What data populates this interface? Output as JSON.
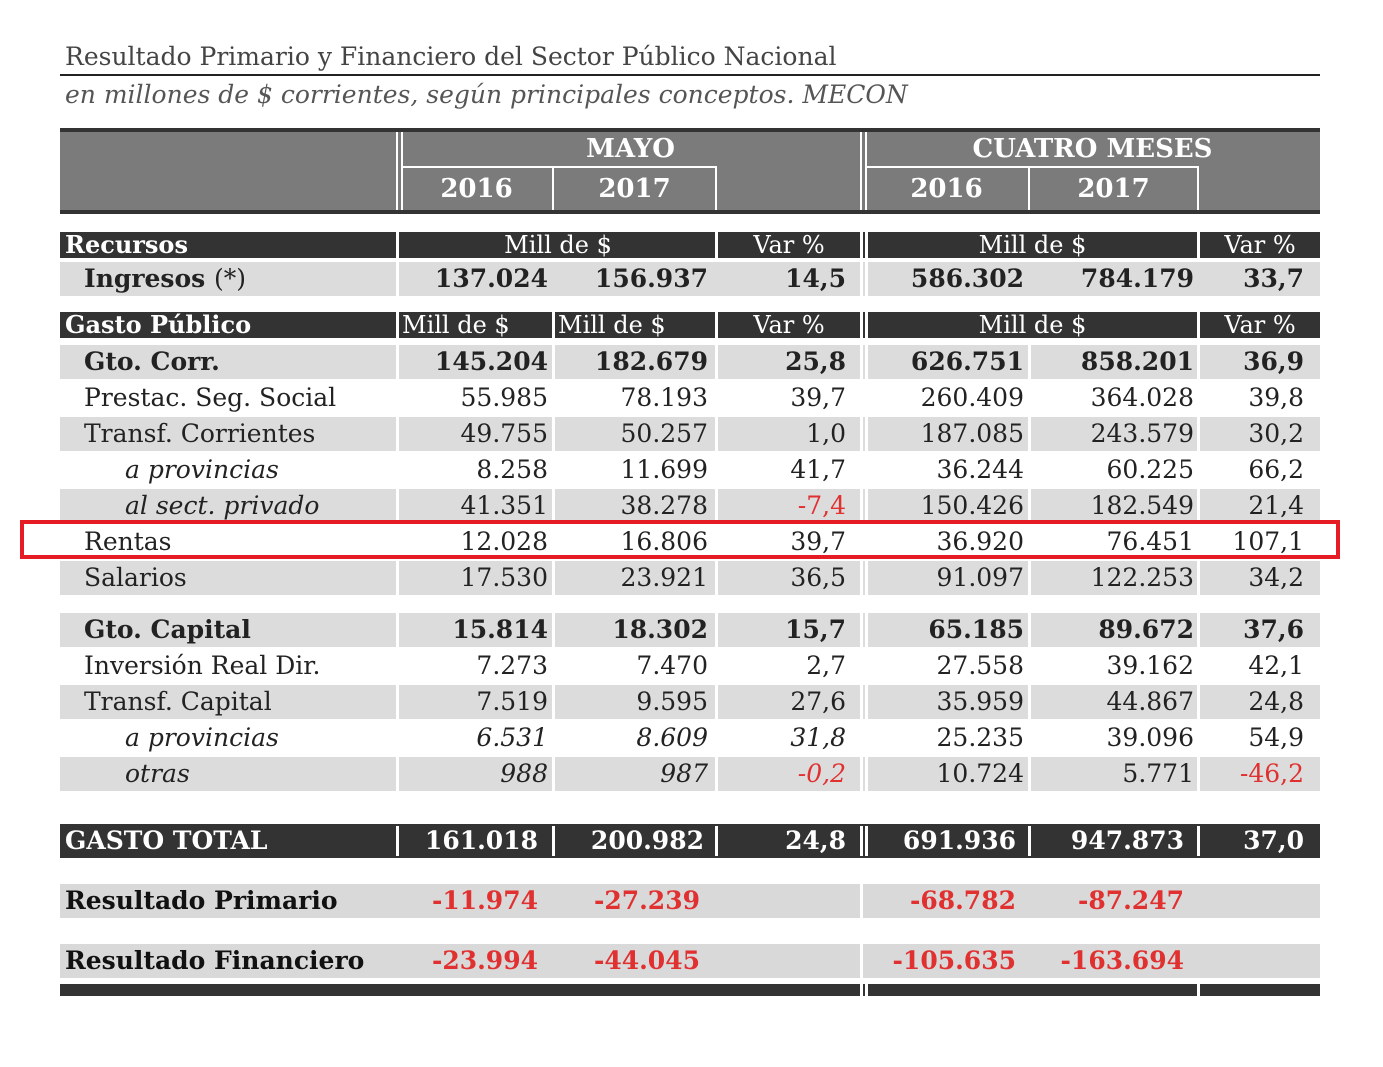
{
  "title": "Resultado Primario y Financiero del Sector Público Nacional",
  "subtitle": "en millones de $ corrientes, según principales conceptos. MECON",
  "header": {
    "mayo": "MAYO",
    "cuatro_meses": "CUATRO MESES",
    "y2016": "2016",
    "y2017": "2017"
  },
  "recursos": {
    "label": "Recursos",
    "mill_label": "Mill de $",
    "var_label": "Var %",
    "row": {
      "label": "Ingresos",
      "note": "(*)",
      "values": [
        "137.024",
        "156.937",
        "14,5",
        "586.302",
        "784.179",
        "33,7"
      ]
    }
  },
  "gasto": {
    "label": "Gasto Público",
    "mill_label": "Mill de $",
    "var_label": "Var %",
    "rows": [
      {
        "label": "Gto. Corr.",
        "values": [
          "145.204",
          "182.679",
          "25,8",
          "626.751",
          "858.201",
          "36,9"
        ]
      },
      {
        "label": "Prestac. Seg. Social",
        "values": [
          "55.985",
          "78.193",
          "39,7",
          "260.409",
          "364.028",
          "39,8"
        ]
      },
      {
        "label": "Transf. Corrientes",
        "values": [
          "49.755",
          "50.257",
          "1,0",
          "187.085",
          "243.579",
          "30,2"
        ]
      },
      {
        "label": "a provincias",
        "values": [
          "8.258",
          "11.699",
          "41,7",
          "36.244",
          "60.225",
          "66,2"
        ]
      },
      {
        "label": "al sect. privado",
        "values": [
          "41.351",
          "38.278",
          "-7,4",
          "150.426",
          "182.549",
          "21,4"
        ]
      },
      {
        "label": "Rentas",
        "values": [
          "12.028",
          "16.806",
          "39,7",
          "36.920",
          "76.451",
          "107,1"
        ]
      },
      {
        "label": "Salarios",
        "values": [
          "17.530",
          "23.921",
          "36,5",
          "91.097",
          "122.253",
          "34,2"
        ]
      },
      {
        "label": "Gto. Capital",
        "values": [
          "15.814",
          "18.302",
          "15,7",
          "65.185",
          "89.672",
          "37,6"
        ]
      },
      {
        "label": "Inversión Real Dir.",
        "values": [
          "7.273",
          "7.470",
          "2,7",
          "27.558",
          "39.162",
          "42,1"
        ]
      },
      {
        "label": "Transf. Capital",
        "values": [
          "7.519",
          "9.595",
          "27,6",
          "35.959",
          "44.867",
          "24,8"
        ]
      },
      {
        "label": "a provincias",
        "values": [
          "6.531",
          "8.609",
          "31,8",
          "25.235",
          "39.096",
          "54,9"
        ]
      },
      {
        "label": "otras",
        "values": [
          "988",
          "987",
          "-0,2",
          "10.724",
          "5.771",
          "-46,2"
        ]
      }
    ]
  },
  "total": {
    "label": "GASTO TOTAL",
    "values": [
      "161.018",
      "200.982",
      "24,8",
      "691.936",
      "947.873",
      "37,0"
    ]
  },
  "resultado_primario": {
    "label": "Resultado Primario",
    "values": [
      "-11.974",
      "-27.239",
      "-68.782",
      "-87.247"
    ]
  },
  "resultado_financiero": {
    "label": "Resultado Financiero",
    "values": [
      "-23.994",
      "-44.045",
      "-105.635",
      "-163.694"
    ]
  },
  "colors": {
    "highlight": "#e51c23",
    "negative": "#e03030",
    "header": "#7b7b7b",
    "dark": "#333333"
  }
}
